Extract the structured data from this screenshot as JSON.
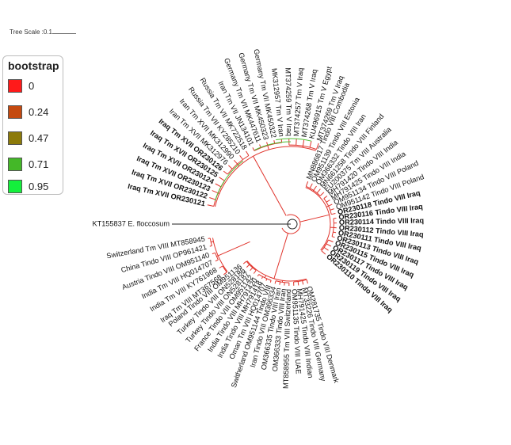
{
  "scale": {
    "label": "Tree Scale :0.1"
  },
  "legend": {
    "title": "bootstrap",
    "items": [
      {
        "label": "0",
        "color": "#ff1a1a"
      },
      {
        "label": "0.24",
        "color": "#c44a10"
      },
      {
        "label": "0.47",
        "color": "#8c7a0a"
      },
      {
        "label": "0.71",
        "color": "#44b828"
      },
      {
        "label": "0.95",
        "color": "#14f03c"
      }
    ]
  },
  "tree": {
    "outgroup": {
      "accession": "KT155837",
      "species": "E. floccosum"
    },
    "branch_colors": {
      "main": "#e0332b",
      "outgroup": "#222222",
      "green": "#4cbf30"
    },
    "upper_left": [
      {
        "label": "Iraq Tm XVII OR230121",
        "bold": true
      },
      {
        "label": "Iraq Tm XVII OR230122",
        "bold": true
      },
      {
        "label": "Iraq Tm XVII OR230123",
        "bold": true
      },
      {
        "label": "Iraq Tm XVII OR230124",
        "bold": true
      },
      {
        "label": "Iraq Tm XVII OR230125",
        "bold": true
      },
      {
        "label": "Iraq Tm XVII OR230126",
        "bold": true
      },
      {
        "label": "Iran Tm XVII MK312976",
        "bold": false
      },
      {
        "label": "Iran Tm XVII MK312990",
        "bold": false
      },
      {
        "label": "Russia Tm VII KY285210",
        "bold": false
      },
      {
        "label": "Russia Tm VII MK722518",
        "bold": false
      },
      {
        "label": "Iran Tm VII JN134101",
        "bold": false
      },
      {
        "label": "Germany Tm VII MK447611",
        "bold": false
      },
      {
        "label": "Germany Tm VII MK450323",
        "bold": false
      },
      {
        "label": "Germany Tm VII MK450322",
        "bold": false
      },
      {
        "label": "MK312957 Tm V Iran",
        "bold": false
      },
      {
        "label": "MT374259 Tm V Iraq",
        "bold": false
      },
      {
        "label": "MT374257 Tm V Iraq",
        "bold": false
      },
      {
        "label": "MT374268 Tm V Iraq",
        "bold": false
      },
      {
        "label": "KU496915 Tm V Egypt",
        "bold": false
      },
      {
        "label": "MT374269 Tm V Iraq",
        "bold": false
      }
    ],
    "right": [
      {
        "label": "MN886817 Tindo VIII Combodia",
        "bold": false
      },
      {
        "label": "OM951139 Tindo VIII Estonia",
        "bold": false
      },
      {
        "label": "OM366332 Tindo VIII Iran",
        "bold": false
      },
      {
        "label": "MN661258 Tindo VIII Finland",
        "bold": false
      },
      {
        "label": "EU200375 Tm VIII Australia",
        "bold": false
      },
      {
        "label": "MH791420 Tindo VIII India",
        "bold": false
      },
      {
        "label": "MH791425 Tindo VIII India",
        "bold": false
      },
      {
        "label": "OM951134 Tindo VIII Poland",
        "bold": false
      },
      {
        "label": "OM951142 Tindo VIII Poland",
        "bold": false
      },
      {
        "label": "OR230118 Tindo VIII Iraq",
        "bold": true
      },
      {
        "label": "OR230116 Tindo VIII Iraq",
        "bold": true
      },
      {
        "label": "OR230114 Tindo VIII Iraq",
        "bold": true
      },
      {
        "label": "OR230112 Tindo VIII Iraq",
        "bold": true
      },
      {
        "label": "OR230111 Tindo VIII Iraq",
        "bold": true
      },
      {
        "label": "OR230113 Tindo VIII Iraq",
        "bold": true
      },
      {
        "label": "OR230115 Tindo VIII Iraq",
        "bold": true
      },
      {
        "label": "OR230117 Tindo VIII Iraq",
        "bold": true
      },
      {
        "label": "OR230119 Tindo VIII Iraq",
        "bold": true
      },
      {
        "label": "OR230110 Tindo VIII Iraq",
        "bold": true
      }
    ],
    "bottom": [
      {
        "label": "OM281735 Tindo VIII Denmark",
        "bold": false
      },
      {
        "label": "MT33226 Tindo VIII Germany",
        "bold": false
      },
      {
        "label": "MH791425 Tindo VIII Indian",
        "bold": false
      },
      {
        "label": "OM951135 Tindo VIII UAE",
        "bold": false
      },
      {
        "label": "MT858955 Tm VIII Switzerland",
        "bold": false
      },
      {
        "label": "OM366333 Tindo VIII Iran",
        "bold": false
      },
      {
        "label": "OM366335 Tindo VIII Iran",
        "bold": false
      },
      {
        "label": "Iran Tindo VIII OM366334",
        "bold": false
      },
      {
        "label": "Switherland OM951144 Tindo VIII",
        "bold": false
      },
      {
        "label": "Oman Tm VIII HQ014707",
        "bold": false
      },
      {
        "label": "India Tindo VIII MH791418",
        "bold": false
      },
      {
        "label": "India Tindo VIII MH791420",
        "bold": false
      },
      {
        "label": "France Tindo VIII OM951142",
        "bold": false
      },
      {
        "label": "Turkey Tindo VIII ON528187",
        "bold": false
      },
      {
        "label": "Turkey Tindo VIII ON528186",
        "bold": false
      },
      {
        "label": "Poland Tindo VIII OM951136",
        "bold": false
      }
    ],
    "lower_left": [
      {
        "label": "Iraq Tm VIII MT367568",
        "bold": false
      },
      {
        "label": "India Tm VIII KY761968",
        "bold": false
      },
      {
        "label": "India Tm VIII HQ014707",
        "bold": false
      },
      {
        "label": "Austria Tindo VIII OM951140",
        "bold": false
      },
      {
        "label": "China Tindo VIII OP961421",
        "bold": false
      },
      {
        "label": "Switzerland Tm VIII MT858945",
        "bold": false
      }
    ]
  }
}
